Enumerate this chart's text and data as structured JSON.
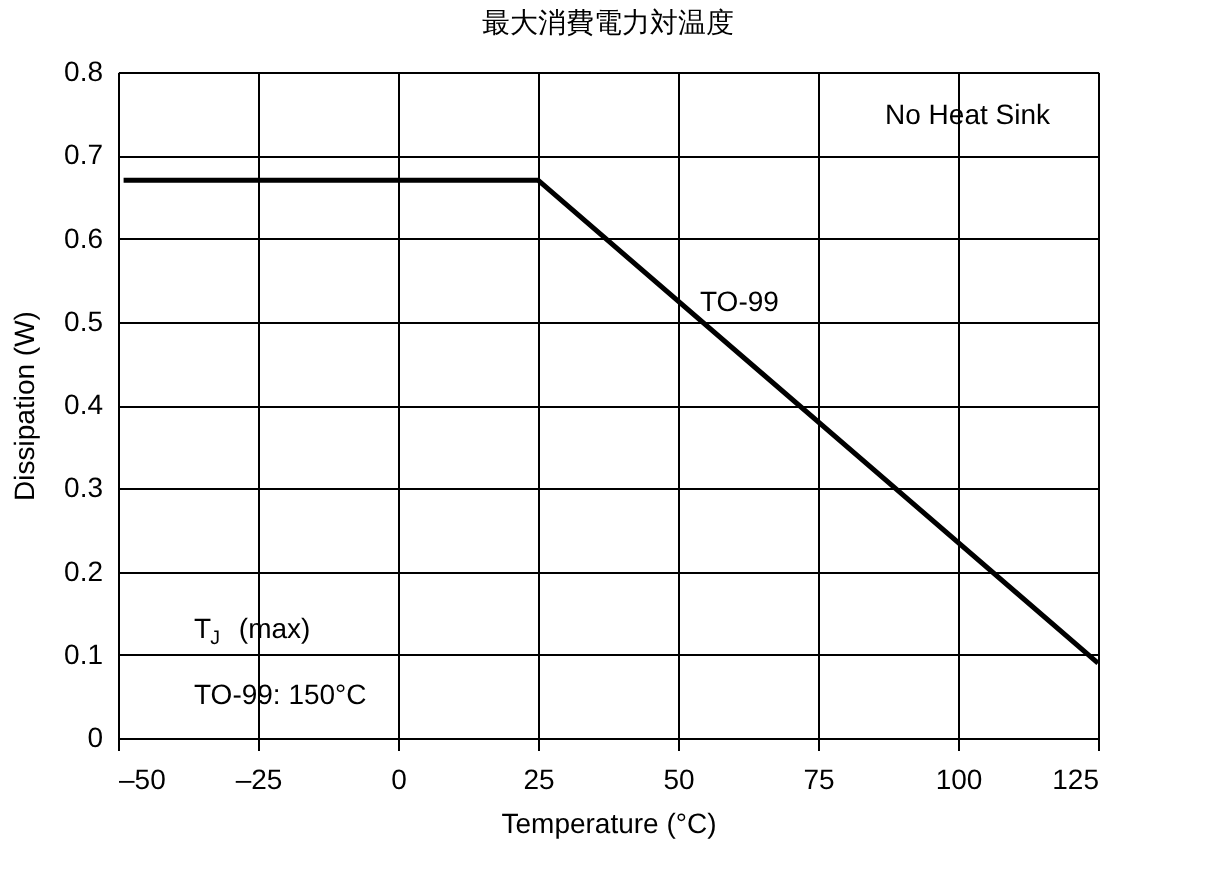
{
  "chart_data": {
    "type": "line",
    "title": "最大消費電力対温度",
    "xlabel": "Temperature (°C)",
    "ylabel": "Dissipation (W)",
    "x": [
      -49,
      25,
      125
    ],
    "series": [
      {
        "name": "TO-99",
        "color": "#000000",
        "values": [
          0.67,
          0.67,
          0.09
        ]
      }
    ],
    "xlim": [
      -50,
      125
    ],
    "xticks": [
      {
        "value": -50,
        "label": "–50"
      },
      {
        "value": -25,
        "label": "–25"
      },
      0,
      25,
      50,
      75,
      100,
      125
    ],
    "ylim": [
      0,
      0.8
    ],
    "yticks": [
      0,
      0.1,
      0.2,
      0.3,
      0.4,
      0.5,
      0.6,
      0.7,
      0.8
    ],
    "grid": true,
    "legend": false,
    "marker": "none",
    "line_style": "solid",
    "annotations": [
      "No Heat Sink",
      "T$_{J}$ (max)",
      "TO-99: 150°C"
    ]
  }
}
